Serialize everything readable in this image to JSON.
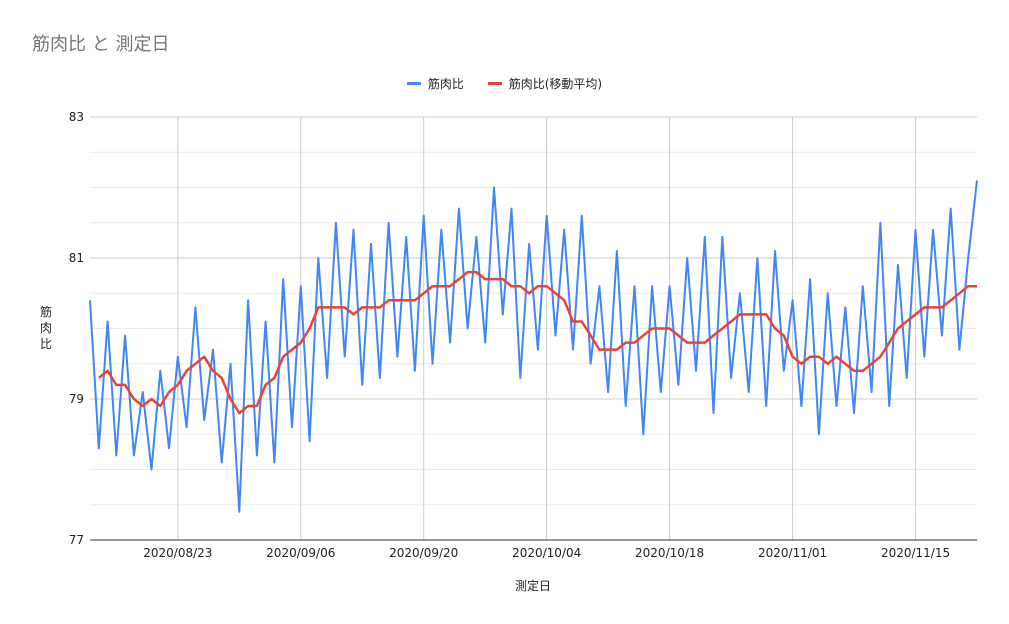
{
  "chart_data": {
    "type": "line",
    "title": "筋肉比 と 測定日",
    "xlabel": "測定日",
    "ylabel": "筋肉比",
    "ylim": [
      77,
      83
    ],
    "y_ticks": [
      77,
      79,
      81,
      83
    ],
    "x_range": [
      "2020-08-13",
      "2020-11-22"
    ],
    "x_ticks": [
      "2020/08/23",
      "2020/09/06",
      "2020/09/20",
      "2020/10/04",
      "2020/10/18",
      "2020/11/01",
      "2020/11/15"
    ],
    "grid": true,
    "legend_position": "top",
    "series": [
      {
        "name": "筋肉比",
        "color": "#4285f4",
        "dates": [
          "2020-08-13",
          "2020-08-14",
          "2020-08-15",
          "2020-08-16",
          "2020-08-17",
          "2020-08-18",
          "2020-08-19",
          "2020-08-20",
          "2020-08-21",
          "2020-08-22",
          "2020-08-23",
          "2020-08-24",
          "2020-08-25",
          "2020-08-26",
          "2020-08-27",
          "2020-08-28",
          "2020-08-29",
          "2020-08-30",
          "2020-08-31",
          "2020-09-01",
          "2020-09-02",
          "2020-09-03",
          "2020-09-04",
          "2020-09-05",
          "2020-09-06",
          "2020-09-07",
          "2020-09-08",
          "2020-09-09",
          "2020-09-10",
          "2020-09-11",
          "2020-09-12",
          "2020-09-13",
          "2020-09-14",
          "2020-09-15",
          "2020-09-16",
          "2020-09-17",
          "2020-09-18",
          "2020-09-19",
          "2020-09-20",
          "2020-09-21",
          "2020-09-22",
          "2020-09-23",
          "2020-09-24",
          "2020-09-25",
          "2020-09-26",
          "2020-09-27",
          "2020-09-28",
          "2020-09-29",
          "2020-09-30",
          "2020-10-01",
          "2020-10-02",
          "2020-10-03",
          "2020-10-04",
          "2020-10-05",
          "2020-10-06",
          "2020-10-07",
          "2020-10-08",
          "2020-10-09",
          "2020-10-10",
          "2020-10-11",
          "2020-10-12",
          "2020-10-13",
          "2020-10-14",
          "2020-10-15",
          "2020-10-16",
          "2020-10-17",
          "2020-10-18",
          "2020-10-19",
          "2020-10-20",
          "2020-10-21",
          "2020-10-22",
          "2020-10-23",
          "2020-10-24",
          "2020-10-25",
          "2020-10-26",
          "2020-10-27",
          "2020-10-28",
          "2020-10-29",
          "2020-10-30",
          "2020-10-31",
          "2020-11-01",
          "2020-11-02",
          "2020-11-03",
          "2020-11-04",
          "2020-11-05",
          "2020-11-06",
          "2020-11-07",
          "2020-11-08",
          "2020-11-09",
          "2020-11-10",
          "2020-11-11",
          "2020-11-12",
          "2020-11-13",
          "2020-11-14",
          "2020-11-15",
          "2020-11-16",
          "2020-11-17",
          "2020-11-18",
          "2020-11-19",
          "2020-11-20",
          "2020-11-21",
          "2020-11-22"
        ],
        "values": [
          80.4,
          78.3,
          80.1,
          78.2,
          79.9,
          78.2,
          79.1,
          78.0,
          79.4,
          78.3,
          79.6,
          78.6,
          80.3,
          78.7,
          79.7,
          78.1,
          79.5,
          77.4,
          80.4,
          78.2,
          80.1,
          78.1,
          80.7,
          78.6,
          80.6,
          78.4,
          81.0,
          79.3,
          81.5,
          79.6,
          81.4,
          79.2,
          81.2,
          79.3,
          81.5,
          79.6,
          81.3,
          79.4,
          81.6,
          79.5,
          81.4,
          79.8,
          81.7,
          80.0,
          81.3,
          79.8,
          82.0,
          80.2,
          81.7,
          79.3,
          81.2,
          79.7,
          81.6,
          79.9,
          81.4,
          79.7,
          81.6,
          79.5,
          80.6,
          79.1,
          81.1,
          78.9,
          80.6,
          78.5,
          80.6,
          79.1,
          80.6,
          79.2,
          81.0,
          79.4,
          81.3,
          78.8,
          81.3,
          79.3,
          80.5,
          79.1,
          81.0,
          78.9,
          81.1,
          79.4,
          80.4,
          78.9,
          80.7,
          78.5,
          80.5,
          78.9,
          80.3,
          78.8,
          80.6,
          79.1,
          81.5,
          78.9,
          80.9,
          79.3,
          81.4,
          79.6,
          81.4,
          79.9,
          81.7,
          79.7,
          81.0,
          82.1
        ]
      },
      {
        "name": "筋肉比(移動平均)",
        "color": "#ea4335",
        "dates": [
          "2020-08-13",
          "2020-08-14",
          "2020-08-15",
          "2020-08-16",
          "2020-08-17",
          "2020-08-18",
          "2020-08-19",
          "2020-08-20",
          "2020-08-21",
          "2020-08-22",
          "2020-08-23",
          "2020-08-24",
          "2020-08-25",
          "2020-08-26",
          "2020-08-27",
          "2020-08-28",
          "2020-08-29",
          "2020-08-30",
          "2020-08-31",
          "2020-09-01",
          "2020-09-02",
          "2020-09-03",
          "2020-09-04",
          "2020-09-05",
          "2020-09-06",
          "2020-09-07",
          "2020-09-08",
          "2020-09-09",
          "2020-09-10",
          "2020-09-11",
          "2020-09-12",
          "2020-09-13",
          "2020-09-14",
          "2020-09-15",
          "2020-09-16",
          "2020-09-17",
          "2020-09-18",
          "2020-09-19",
          "2020-09-20",
          "2020-09-21",
          "2020-09-22",
          "2020-09-23",
          "2020-09-24",
          "2020-09-25",
          "2020-09-26",
          "2020-09-27",
          "2020-09-28",
          "2020-09-29",
          "2020-09-30",
          "2020-10-01",
          "2020-10-02",
          "2020-10-03",
          "2020-10-04",
          "2020-10-05",
          "2020-10-06",
          "2020-10-07",
          "2020-10-08",
          "2020-10-09",
          "2020-10-10",
          "2020-10-11",
          "2020-10-12",
          "2020-10-13",
          "2020-10-14",
          "2020-10-15",
          "2020-10-16",
          "2020-10-17",
          "2020-10-18",
          "2020-10-19",
          "2020-10-20",
          "2020-10-21",
          "2020-10-22",
          "2020-10-23",
          "2020-10-24",
          "2020-10-25",
          "2020-10-26",
          "2020-10-27",
          "2020-10-28",
          "2020-10-29",
          "2020-10-30",
          "2020-10-31",
          "2020-11-01",
          "2020-11-02",
          "2020-11-03",
          "2020-11-04",
          "2020-11-05",
          "2020-11-06",
          "2020-11-07",
          "2020-11-08",
          "2020-11-09",
          "2020-11-10",
          "2020-11-11",
          "2020-11-12",
          "2020-11-13",
          "2020-11-14",
          "2020-11-15",
          "2020-11-16",
          "2020-11-17",
          "2020-11-18",
          "2020-11-19",
          "2020-11-20",
          "2020-11-21",
          "2020-11-22"
        ],
        "values": [
          null,
          79.3,
          79.4,
          79.2,
          79.2,
          79.0,
          78.9,
          79.0,
          78.9,
          79.1,
          79.2,
          79.4,
          79.5,
          79.6,
          79.4,
          79.3,
          79.0,
          78.8,
          78.9,
          78.9,
          79.2,
          79.3,
          79.6,
          79.7,
          79.8,
          80.0,
          80.3,
          80.3,
          80.3,
          80.3,
          80.2,
          80.3,
          80.3,
          80.3,
          80.4,
          80.4,
          80.4,
          80.4,
          80.5,
          80.6,
          80.6,
          80.6,
          80.7,
          80.8,
          80.8,
          80.7,
          80.7,
          80.7,
          80.6,
          80.6,
          80.5,
          80.6,
          80.6,
          80.5,
          80.4,
          80.1,
          80.1,
          79.9,
          79.7,
          79.7,
          79.7,
          79.8,
          79.8,
          79.9,
          80.0,
          80.0,
          80.0,
          79.9,
          79.8,
          79.8,
          79.8,
          79.9,
          80.0,
          80.1,
          80.2,
          80.2,
          80.2,
          80.2,
          80.0,
          79.9,
          79.6,
          79.5,
          79.6,
          79.6,
          79.5,
          79.6,
          79.5,
          79.4,
          79.4,
          79.5,
          79.6,
          79.8,
          80.0,
          80.1,
          80.2,
          80.3,
          80.3,
          80.3,
          80.4,
          80.5,
          80.6,
          80.6
        ]
      }
    ]
  }
}
